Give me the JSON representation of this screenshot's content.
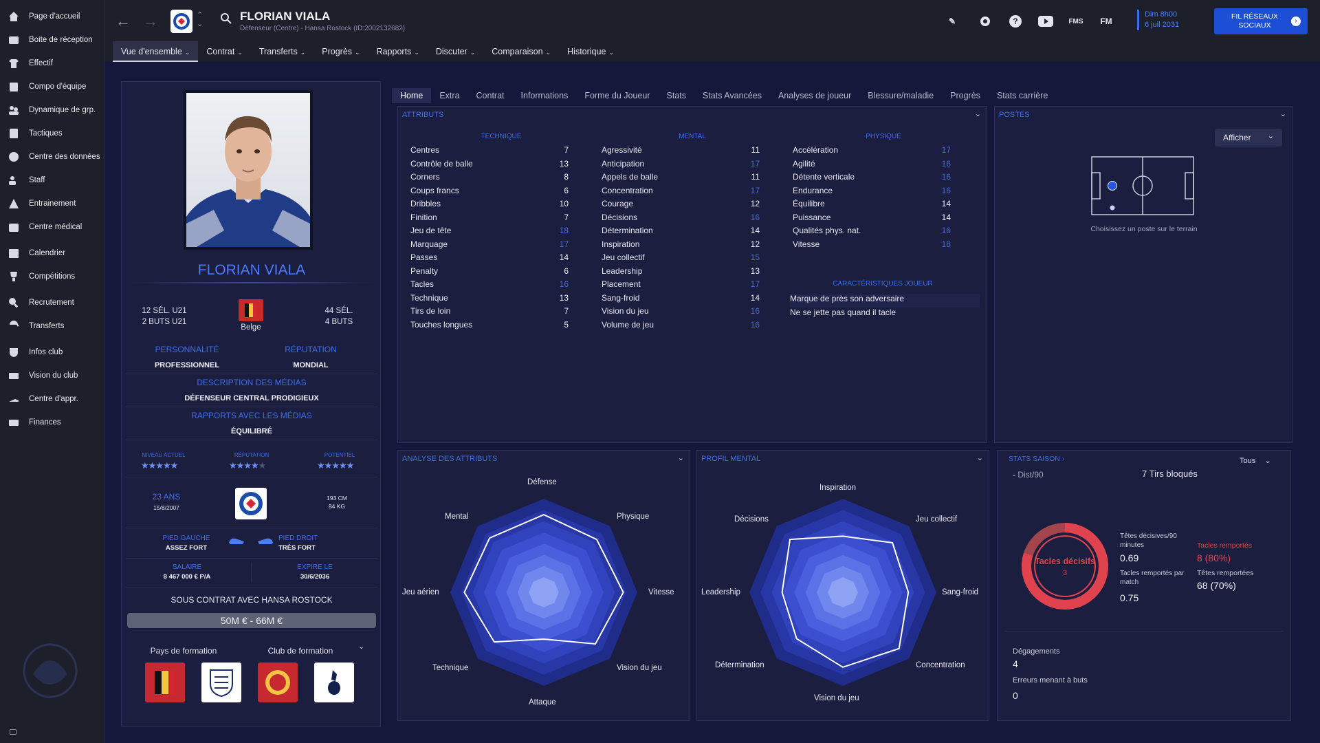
{
  "sidebar": {
    "items": [
      {
        "label": "Page d'accueil",
        "icon": "home-icon"
      },
      {
        "label": "Boite de réception",
        "icon": "inbox-icon"
      },
      {
        "label": "Effectif",
        "icon": "shirt-icon"
      },
      {
        "label": "Compo d'équipe",
        "icon": "clipboard-icon"
      },
      {
        "label": "Dynamique de grp.",
        "icon": "group-icon"
      },
      {
        "label": "Tactiques",
        "icon": "board-icon"
      },
      {
        "label": "Centre des données",
        "icon": "data-icon"
      },
      {
        "label": "Staff",
        "icon": "staff-icon"
      },
      {
        "label": "Entrainement",
        "icon": "training-icon"
      },
      {
        "label": "Centre médical",
        "icon": "medical-icon"
      },
      {
        "label": "Calendrier",
        "icon": "calendar-icon"
      },
      {
        "label": "Compétitions",
        "icon": "trophy-icon"
      },
      {
        "label": "Recrutement",
        "icon": "search-icon"
      },
      {
        "label": "Transferts",
        "icon": "transfer-icon"
      },
      {
        "label": "Infos club",
        "icon": "shield-icon"
      },
      {
        "label": "Vision du club",
        "icon": "vision-icon"
      },
      {
        "label": "Centre d'appr.",
        "icon": "academy-icon"
      },
      {
        "label": "Finances",
        "icon": "money-icon"
      }
    ]
  },
  "header": {
    "player_name": "FLORIAN VIALA",
    "subtitle": "Défenseur (Centre) - Hansa Rostock (ID:2002132682)",
    "menu": [
      {
        "label": "Vue d'ensemble",
        "active": true
      },
      {
        "label": "Contrat"
      },
      {
        "label": "Transferts"
      },
      {
        "label": "Progrès"
      },
      {
        "label": "Rapports"
      },
      {
        "label": "Discuter"
      },
      {
        "label": "Comparaison"
      },
      {
        "label": "Historique"
      }
    ],
    "icons": {
      "fms": "FMS",
      "fm": "FM"
    },
    "date_line1": "Dim 8h00",
    "date_line2": "6 juil 2031",
    "social_line1": "FIL RÉSEAUX",
    "social_line2": "SOCIAUX"
  },
  "profile": {
    "name": "FLORIAN VIALA",
    "left_caps": "12 SÉL. U21",
    "left_goals": "2 BUTS U21",
    "nationality": "Belge",
    "right_caps": "44 SÉL.",
    "right_goals": "4 BUTS",
    "personality_label": "PERSONNALITÉ",
    "personality": "PROFESSIONNEL",
    "reputation_label": "RÉPUTATION",
    "reputation": "MONDIAL",
    "media_desc_label": "DESCRIPTION DES MÉDIAS",
    "media_desc": "DÉFENSEUR CENTRAL PRODIGIEUX",
    "media_rel_label": "RAPPORTS AVEC LES MÉDIAS",
    "media_rel": "ÉQUILIBRÉ",
    "level_label": "NIVEAU ACTUEL",
    "rep_label": "RÉPUTATION",
    "pot_label": "POTENTIEL",
    "level_stars": 4.5,
    "rep_stars": 3.5,
    "pot_stars": 4.5,
    "age": "23 ANS",
    "dob": "15/8/2007",
    "height": "193 CM",
    "weight": "84 KG",
    "left_foot_label": "PIED GAUCHE",
    "left_foot": "ASSEZ FORT",
    "right_foot_label": "PIED DROIT",
    "right_foot": "TRÈS FORT",
    "salary_label": "SALAIRE",
    "salary": "8 467 000 € P/A",
    "expiry_label": "EXPIRE LE",
    "expiry": "30/6/2036",
    "contract": "SOUS CONTRAT AVEC HANSA ROSTOCK",
    "value": "50M € - 66M €",
    "training_country_label": "Pays de formation",
    "training_club_label": "Club de formation"
  },
  "tabs": [
    "Home",
    "Extra",
    "Contrat",
    "Informations",
    "Forme du Joueur",
    "Stats",
    "Stats Avancées",
    "Analyses de joueur",
    "Blessure/maladie",
    "Progrès",
    "Stats carrière"
  ],
  "attributes": {
    "title": "ATTRIBUTS",
    "technique_label": "TECHNIQUE",
    "mental_label": "MENTAL",
    "physique_label": "PHYSIQUE",
    "traits_label": "CARACTÉRISTIQUES JOUEUR",
    "technique": [
      {
        "name": "Centres",
        "value": 7
      },
      {
        "name": "Contrôle de balle",
        "value": 13
      },
      {
        "name": "Corners",
        "value": 8
      },
      {
        "name": "Coups francs",
        "value": 6
      },
      {
        "name": "Dribbles",
        "value": 10
      },
      {
        "name": "Finition",
        "value": 7
      },
      {
        "name": "Jeu de tête",
        "value": 18
      },
      {
        "name": "Marquage",
        "value": 17
      },
      {
        "name": "Passes",
        "value": 14
      },
      {
        "name": "Penalty",
        "value": 6
      },
      {
        "name": "Tacles",
        "value": 16
      },
      {
        "name": "Technique",
        "value": 13
      },
      {
        "name": "Tirs de loin",
        "value": 7
      },
      {
        "name": "Touches longues",
        "value": 5
      }
    ],
    "mental": [
      {
        "name": "Agressivité",
        "value": 11
      },
      {
        "name": "Anticipation",
        "value": 17
      },
      {
        "name": "Appels de balle",
        "value": 11
      },
      {
        "name": "Concentration",
        "value": 17
      },
      {
        "name": "Courage",
        "value": 12
      },
      {
        "name": "Décisions",
        "value": 16
      },
      {
        "name": "Détermination",
        "value": 14
      },
      {
        "name": "Inspiration",
        "value": 12
      },
      {
        "name": "Jeu collectif",
        "value": 15
      },
      {
        "name": "Leadership",
        "value": 13
      },
      {
        "name": "Placement",
        "value": 17
      },
      {
        "name": "Sang-froid",
        "value": 14
      },
      {
        "name": "Vision du jeu",
        "value": 16
      },
      {
        "name": "Volume de jeu",
        "value": 16
      }
    ],
    "physique": [
      {
        "name": "Accélération",
        "value": 17
      },
      {
        "name": "Agilité",
        "value": 16
      },
      {
        "name": "Détente verticale",
        "value": 16
      },
      {
        "name": "Endurance",
        "value": 16
      },
      {
        "name": "Équilibre",
        "value": 14
      },
      {
        "name": "Puissance",
        "value": 14
      },
      {
        "name": "Qualités phys. nat.",
        "value": 16
      },
      {
        "name": "Vitesse",
        "value": 18
      }
    ],
    "traits": [
      "Marque de près son adversaire",
      "Ne se jette pas quand il tacle"
    ]
  },
  "positions": {
    "title": "POSTES",
    "button": "Afficher",
    "hint": "Choisissez un poste sur le terrain"
  },
  "analysis": {
    "title": "ANALYSE DES ATTRIBUTS",
    "axes": [
      "Défense",
      "Physique",
      "Vitesse",
      "Vision du jeu",
      "Attaque",
      "Technique",
      "Jeu aérien",
      "Mental"
    ],
    "values": [
      0.83,
      0.8,
      0.85,
      0.78,
      0.5,
      0.75,
      0.85,
      0.82
    ]
  },
  "mental_profile": {
    "title": "PROFIL MENTAL",
    "axes": [
      "Inspiration",
      "Jeu collectif",
      "Sang-froid",
      "Concentration",
      "Vision du jeu",
      "Détermination",
      "Leadership",
      "Décisions"
    ],
    "values": [
      0.6,
      0.75,
      0.7,
      0.85,
      0.8,
      0.7,
      0.65,
      0.8
    ]
  },
  "season_stats": {
    "title": "STATS SAISON",
    "filter": "Tous",
    "dist": "Dist/90",
    "dist_value": "-",
    "blocked": "7 Tirs bloqués",
    "donut_label": "Tacles décisifs",
    "donut_value": "3",
    "donut_fraction": 0.8,
    "headers_label": "Têtes décisives/90 minutes",
    "headers_value": "0.69",
    "tackles_won_label": "Tacles remportés",
    "tackles_won_value": "8 (80%)",
    "tackles_per_match_label": "Tacles remportés par match",
    "tackles_per_match_value": "0.75",
    "headers_won_label": "Têtes remportées",
    "headers_won_value": "68 (70%)",
    "clearances_label": "Dégagements",
    "clearances_value": "4",
    "errors_label": "Erreurs menant à buts",
    "errors_value": "0"
  },
  "colors": {
    "accent": "#3f6fe8",
    "panel": "#1b1e3f",
    "sidebar": "#1d1f2a",
    "donut": "#e0434e"
  }
}
